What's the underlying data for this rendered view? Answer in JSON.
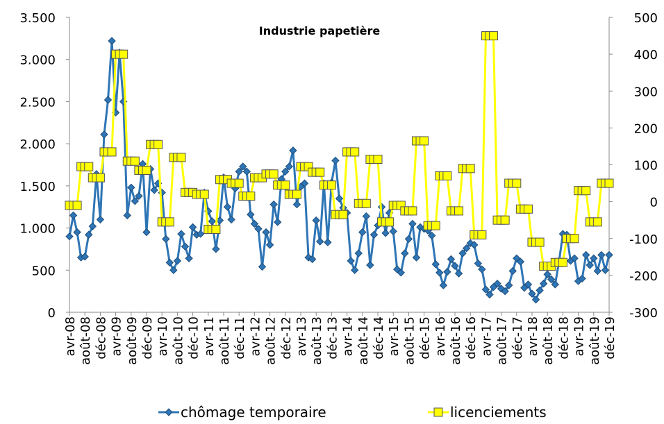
{
  "chart_data": {
    "type": "line",
    "title": "Industrie papetière",
    "categories": [
      "avr-08",
      null,
      null,
      null,
      "août-08",
      null,
      null,
      null,
      "déc-08",
      null,
      null,
      null,
      "avr-09",
      null,
      null,
      null,
      "août-09",
      null,
      null,
      null,
      "déc-09",
      null,
      null,
      null,
      "avr-10",
      null,
      null,
      null,
      "août-10",
      null,
      null,
      null,
      "déc-10",
      null,
      null,
      null,
      "avr-11",
      null,
      null,
      null,
      "août-11",
      null,
      null,
      null,
      "déc-11",
      null,
      null,
      null,
      "avr-12",
      null,
      null,
      null,
      "août-12",
      null,
      null,
      null,
      "déc-12",
      null,
      null,
      null,
      "avr-13",
      null,
      null,
      null,
      "août-13",
      null,
      null,
      null,
      "déc-13",
      null,
      null,
      null,
      "avr-14",
      null,
      null,
      null,
      "août-14",
      null,
      null,
      null,
      "déc-14",
      null,
      null,
      null,
      "avr-15",
      null,
      null,
      null,
      "août-15",
      null,
      null,
      null,
      "déc-15",
      null,
      null,
      null,
      "avr-16",
      null,
      null,
      null,
      "août-16",
      null,
      null,
      null,
      "déc-16",
      null,
      null,
      null,
      "avr-17",
      null,
      null,
      null,
      "août-17",
      null,
      null,
      null,
      "déc-17",
      null,
      null,
      null,
      "avr-18",
      null,
      null,
      null,
      "août-18",
      null,
      null,
      null,
      "déc-18",
      null,
      null,
      null,
      "avr-19",
      null,
      null,
      null,
      "août-19",
      null,
      null,
      null,
      "déc-19"
    ],
    "series": [
      {
        "name": "chômage temporaire",
        "color": "#2e75b6",
        "marker": "diamond",
        "values": [
          900,
          1150,
          950,
          650,
          660,
          920,
          1020,
          1640,
          1100,
          2110,
          2520,
          3220,
          2370,
          3080,
          2500,
          1150,
          1480,
          1320,
          1380,
          1760,
          950,
          1700,
          1450,
          1530,
          1420,
          870,
          590,
          500,
          610,
          930,
          780,
          640,
          1010,
          920,
          930,
          1420,
          1200,
          1080,
          750,
          1090,
          1600,
          1250,
          1100,
          1470,
          1670,
          1730,
          1670,
          1160,
          1050,
          990,
          540,
          950,
          800,
          1280,
          1070,
          1580,
          1670,
          1730,
          1920,
          1280,
          1490,
          1530,
          650,
          630,
          1090,
          840,
          1530,
          830,
          1540,
          1800,
          1350,
          1240,
          1180,
          610,
          500,
          700,
          950,
          1140,
          560,
          920,
          1030,
          1250,
          940,
          1180,
          960,
          510,
          470,
          700,
          870,
          1050,
          650,
          1010,
          990,
          970,
          910,
          570,
          470,
          320,
          480,
          630,
          550,
          460,
          700,
          760,
          820,
          800,
          580,
          510,
          270,
          210,
          300,
          340,
          280,
          250,
          320,
          490,
          640,
          600,
          290,
          330,
          220,
          150,
          260,
          340,
          450,
          390,
          330,
          600,
          930,
          920,
          610,
          640,
          370,
          400,
          680,
          560,
          640,
          490,
          680,
          500,
          680
        ]
      },
      {
        "name": "licenciements",
        "color": "#ffff00",
        "marker": "square",
        "axis": "y2",
        "values": [
          -10,
          -10,
          -10,
          95,
          95,
          95,
          65,
          65,
          65,
          135,
          135,
          135,
          400,
          400,
          400,
          110,
          110,
          110,
          85,
          85,
          85,
          155,
          155,
          155,
          -55,
          -55,
          -55,
          120,
          120,
          120,
          25,
          25,
          25,
          20,
          20,
          20,
          -75,
          -75,
          -75,
          60,
          60,
          60,
          50,
          50,
          50,
          15,
          15,
          15,
          65,
          65,
          65,
          75,
          75,
          75,
          45,
          45,
          45,
          20,
          20,
          20,
          95,
          95,
          95,
          80,
          80,
          80,
          45,
          45,
          45,
          -35,
          -35,
          -35,
          135,
          135,
          135,
          -5,
          -5,
          -5,
          115,
          115,
          115,
          -55,
          -55,
          -55,
          -10,
          -10,
          -10,
          -25,
          -25,
          -25,
          165,
          165,
          165,
          -65,
          -65,
          -65,
          70,
          70,
          70,
          -25,
          -25,
          -25,
          90,
          90,
          90,
          -90,
          -90,
          -90,
          450,
          450,
          450,
          -50,
          -50,
          -50,
          50,
          50,
          50,
          -20,
          -20,
          -20,
          -110,
          -110,
          -110,
          -175,
          -175,
          -175,
          -165,
          -165,
          -165,
          -100,
          -100,
          -100,
          30,
          30,
          30,
          -55,
          -55,
          -55,
          50,
          50,
          50
        ]
      }
    ],
    "ylim": [
      0,
      3500
    ],
    "yticks": [
      0,
      {
        "value": 500,
        "label": "500"
      },
      {
        "value": 1000,
        "label": "1.000"
      },
      {
        "value": 1500,
        "label": "1.500"
      },
      {
        "value": 2000,
        "label": "2.000"
      },
      {
        "value": 2500,
        "label": "2.500"
      },
      {
        "value": 3000,
        "label": "3.000"
      },
      {
        "value": 3500,
        "label": "3.500"
      }
    ],
    "y2lim": [
      -300,
      500
    ],
    "y2ticks": [
      -300,
      -200,
      -100,
      0,
      100,
      200,
      300,
      400,
      500
    ],
    "grid": false,
    "legend": "bottom"
  }
}
